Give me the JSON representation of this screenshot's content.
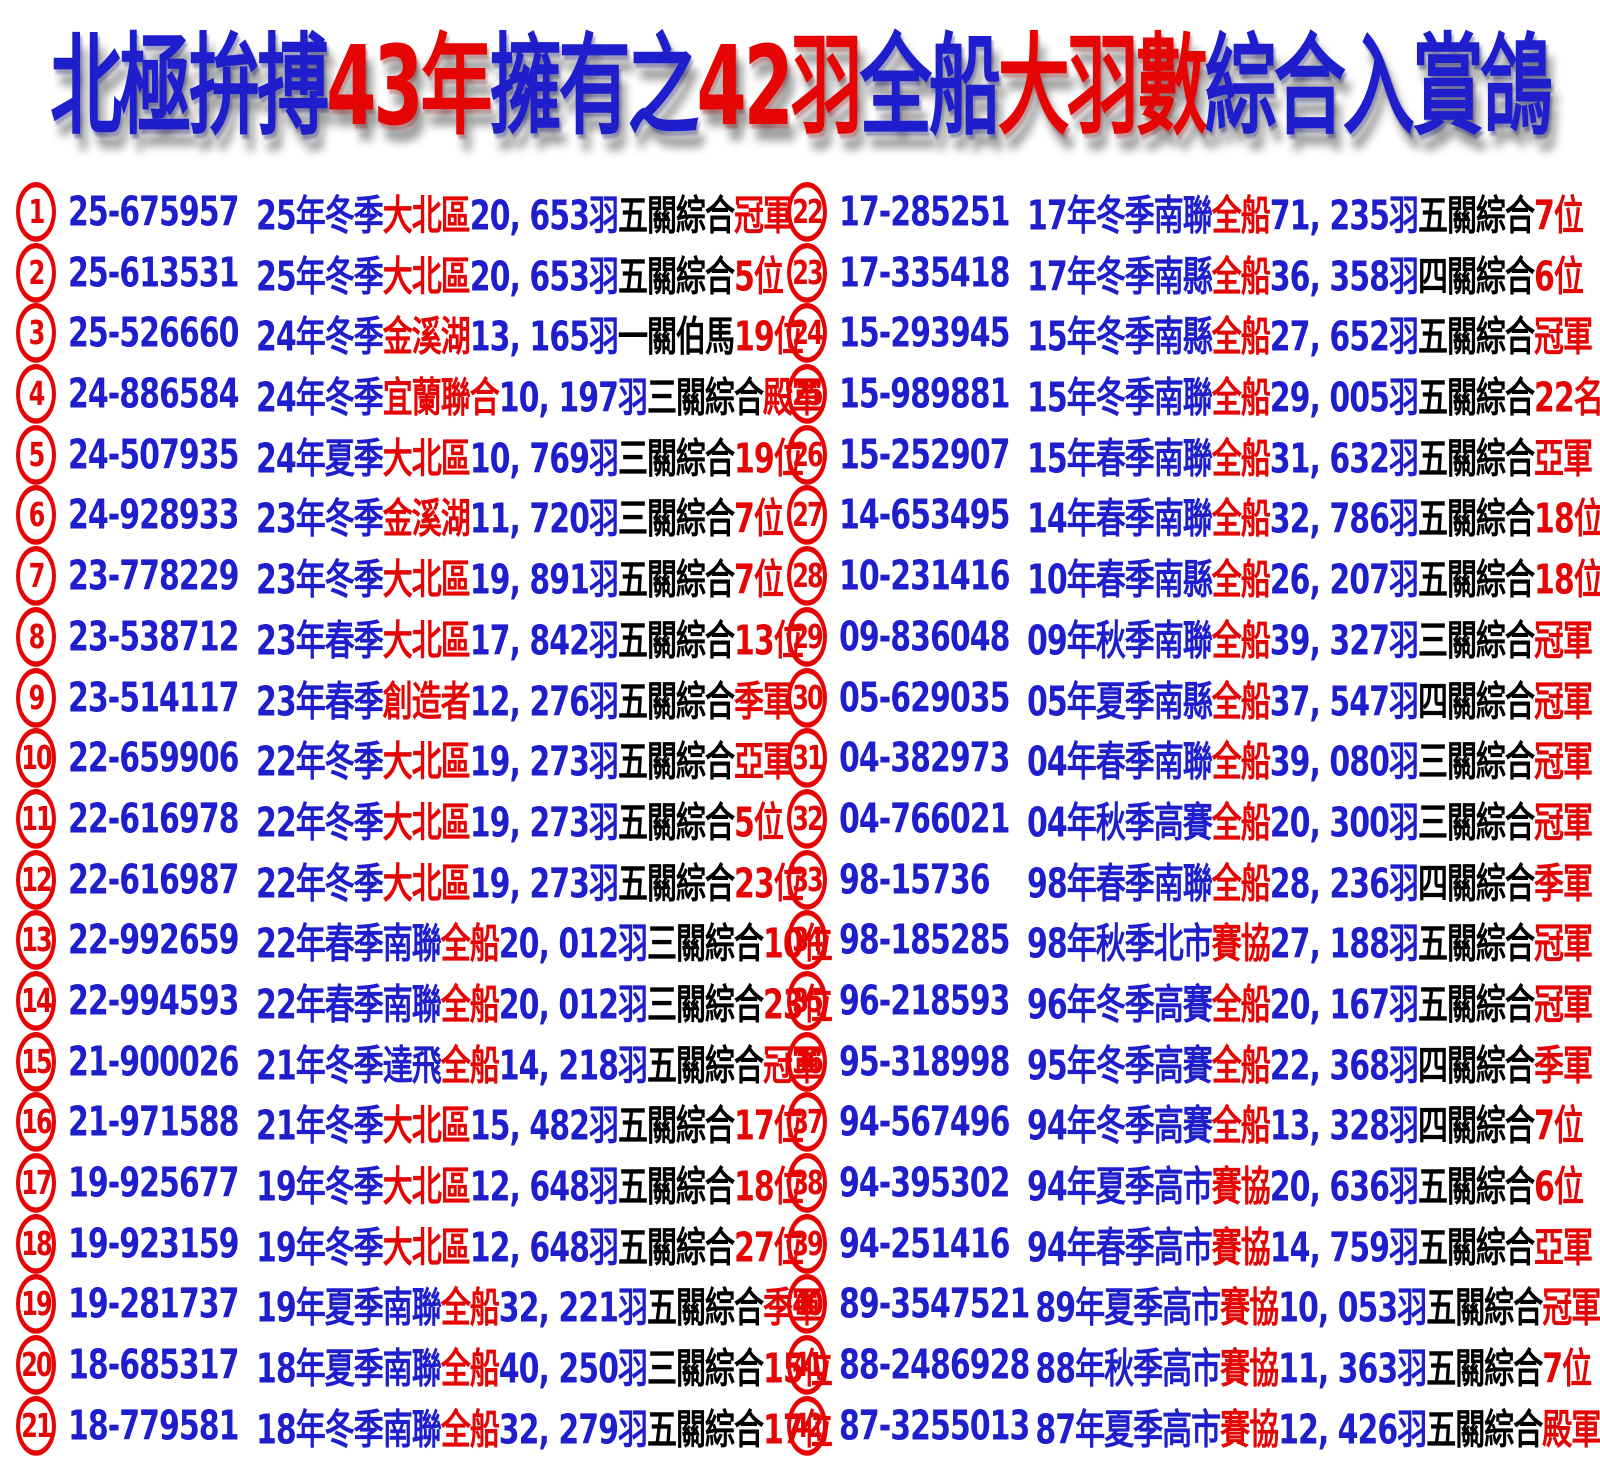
{
  "colors": {
    "blue": "#1e1ecc",
    "red": "#e50505",
    "black": "#000000"
  },
  "title": {
    "segments": [
      {
        "text": "北極拚搏",
        "color": "blue"
      },
      {
        "text": "43年",
        "color": "red"
      },
      {
        "text": "擁有之",
        "color": "blue"
      },
      {
        "text": "42羽",
        "color": "red"
      },
      {
        "text": "全船",
        "color": "blue"
      },
      {
        "text": "大羽數",
        "color": "red"
      },
      {
        "text": "綜合入賞鴿",
        "color": "blue"
      }
    ]
  },
  "rows": [
    {
      "num": "1",
      "ring": "25-675957",
      "pre": "25年冬季",
      "club": "大北區",
      "count": "20, 653羽",
      "stage": "五關綜合",
      "place": "冠軍"
    },
    {
      "num": "2",
      "ring": "25-613531",
      "pre": "25年冬季",
      "club": "大北區",
      "count": "20, 653羽",
      "stage": "五關綜合",
      "place": "5位"
    },
    {
      "num": "3",
      "ring": "25-526660",
      "pre": "24年冬季",
      "club": "金溪湖",
      "count": "13, 165羽",
      "stage": "一關伯馬",
      "place": "19位"
    },
    {
      "num": "4",
      "ring": "24-886584",
      "pre": "24年冬季",
      "club": "宜蘭聯合",
      "count": "10, 197羽",
      "stage": "三關綜合",
      "place": "殿軍"
    },
    {
      "num": "5",
      "ring": "24-507935",
      "pre": "24年夏季",
      "club": "大北區",
      "count": "10, 769羽",
      "stage": "三關綜合",
      "place": "19位"
    },
    {
      "num": "6",
      "ring": "24-928933",
      "pre": "23年冬季",
      "club": "金溪湖",
      "count": "11, 720羽",
      "stage": "三關綜合",
      "place": "7位"
    },
    {
      "num": "7",
      "ring": "23-778229",
      "pre": "23年冬季",
      "club": "大北區",
      "count": "19, 891羽",
      "stage": "五關綜合",
      "place": "7位"
    },
    {
      "num": "8",
      "ring": "23-538712",
      "pre": "23年春季",
      "club": "大北區",
      "count": "17, 842羽",
      "stage": "五關綜合",
      "place": "13位"
    },
    {
      "num": "9",
      "ring": "23-514117",
      "pre": "23年春季",
      "club": "創造者",
      "count": "12, 276羽",
      "stage": "五關綜合",
      "place": "季軍"
    },
    {
      "num": "10",
      "ring": "22-659906",
      "pre": "22年冬季",
      "club": "大北區",
      "count": "19, 273羽",
      "stage": "五關綜合",
      "place": "亞軍"
    },
    {
      "num": "11",
      "ring": "22-616978",
      "pre": "22年冬季",
      "club": "大北區",
      "count": "19, 273羽",
      "stage": "五關綜合",
      "place": "5位"
    },
    {
      "num": "12",
      "ring": "22-616987",
      "pre": "22年冬季",
      "club": "大北區",
      "count": "19, 273羽",
      "stage": "五關綜合",
      "place": "23位"
    },
    {
      "num": "13",
      "ring": "22-992659",
      "pre": "22年春季南聯",
      "club": "全船",
      "count": "20, 012羽",
      "stage": "三關綜合",
      "place": "10位"
    },
    {
      "num": "14",
      "ring": "22-994593",
      "pre": "22年春季南聯",
      "club": "全船",
      "count": "20, 012羽",
      "stage": "三關綜合",
      "place": "23位"
    },
    {
      "num": "15",
      "ring": "21-900026",
      "pre": "21年冬季達飛",
      "club": "全船",
      "count": "14, 218羽",
      "stage": "五關綜合",
      "place": "冠軍"
    },
    {
      "num": "16",
      "ring": "21-971588",
      "pre": "21年冬季",
      "club": "大北區",
      "count": "15, 482羽",
      "stage": "五關綜合",
      "place": "17位"
    },
    {
      "num": "17",
      "ring": "19-925677",
      "pre": "19年冬季",
      "club": "大北區",
      "count": "12, 648羽",
      "stage": "五關綜合",
      "place": "18位"
    },
    {
      "num": "18",
      "ring": "19-923159",
      "pre": "19年冬季",
      "club": "大北區",
      "count": "12, 648羽",
      "stage": "五關綜合",
      "place": "27位"
    },
    {
      "num": "19",
      "ring": "19-281737",
      "pre": "19年夏季南聯",
      "club": "全船",
      "count": "32, 221羽",
      "stage": "五關綜合",
      "place": "季軍"
    },
    {
      "num": "20",
      "ring": "18-685317",
      "pre": "18年夏季南聯",
      "club": "全船",
      "count": "40, 250羽",
      "stage": "三關綜合",
      "place": "15位"
    },
    {
      "num": "21",
      "ring": "18-779581",
      "pre": "18年冬季南聯",
      "club": "全船",
      "count": "32, 279羽",
      "stage": "五關綜合",
      "place": "17位"
    },
    {
      "num": "22",
      "ring": "17-285251",
      "pre": "17年冬季南聯",
      "club": "全船",
      "count": "71, 235羽",
      "stage": "五關綜合",
      "place": "7位"
    },
    {
      "num": "23",
      "ring": "17-335418",
      "pre": "17年冬季南縣",
      "club": "全船",
      "count": "36, 358羽",
      "stage": "四關綜合",
      "place": "6位"
    },
    {
      "num": "24",
      "ring": "15-293945",
      "pre": "15年冬季南縣",
      "club": "全船",
      "count": "27, 652羽",
      "stage": "五關綜合",
      "place": "冠軍"
    },
    {
      "num": "25",
      "ring": "15-989881",
      "pre": "15年冬季南聯",
      "club": "全船",
      "count": "29, 005羽",
      "stage": "五關綜合",
      "place": "22名"
    },
    {
      "num": "26",
      "ring": "15-252907",
      "pre": "15年春季南聯",
      "club": "全船",
      "count": "31, 632羽",
      "stage": "五關綜合",
      "place": "亞軍"
    },
    {
      "num": "27",
      "ring": "14-653495",
      "pre": "14年春季南聯",
      "club": "全船",
      "count": "32, 786羽",
      "stage": "五關綜合",
      "place": "18位"
    },
    {
      "num": "28",
      "ring": "10-231416",
      "pre": "10年春季南縣",
      "club": "全船",
      "count": "26, 207羽",
      "stage": "五關綜合",
      "place": "18位"
    },
    {
      "num": "29",
      "ring": "09-836048",
      "pre": "09年秋季南聯",
      "club": "全船",
      "count": "39, 327羽",
      "stage": "三關綜合",
      "place": "冠軍"
    },
    {
      "num": "30",
      "ring": "05-629035",
      "pre": "05年夏季南縣",
      "club": "全船",
      "count": "37, 547羽",
      "stage": "四關綜合",
      "place": "冠軍"
    },
    {
      "num": "31",
      "ring": "04-382973",
      "pre": "04年春季南聯",
      "club": "全船",
      "count": "39, 080羽",
      "stage": "三關綜合",
      "place": "冠軍"
    },
    {
      "num": "32",
      "ring": "04-766021",
      "pre": "04年秋季高賽",
      "club": "全船",
      "count": "20, 300羽",
      "stage": "三關綜合",
      "place": "冠軍"
    },
    {
      "num": "33",
      "ring": "98-15736",
      "pre": "98年春季南聯",
      "club": "全船",
      "count": "28, 236羽",
      "stage": "四關綜合",
      "place": "季軍"
    },
    {
      "num": "34",
      "ring": "98-185285",
      "pre": "98年秋季北市",
      "club": "賽協",
      "count": "27, 188羽",
      "stage": "五關綜合",
      "place": "冠軍"
    },
    {
      "num": "35",
      "ring": "96-218593",
      "pre": "96年冬季高賽",
      "club": "全船",
      "count": "20, 167羽",
      "stage": "五關綜合",
      "place": "冠軍"
    },
    {
      "num": "36",
      "ring": "95-318998",
      "pre": "95年冬季高賽",
      "club": "全船",
      "count": "22, 368羽",
      "stage": "四關綜合",
      "place": "季軍"
    },
    {
      "num": "37",
      "ring": "94-567496",
      "pre": "94年冬季高賽",
      "club": "全船",
      "count": "13, 328羽",
      "stage": "四關綜合",
      "place": "7位"
    },
    {
      "num": "38",
      "ring": "94-395302",
      "pre": "94年夏季高市",
      "club": "賽協",
      "count": "20, 636羽",
      "stage": "五關綜合",
      "place": "6位"
    },
    {
      "num": "39",
      "ring": "94-251416",
      "pre": "94年春季高市",
      "club": "賽協",
      "count": "14, 759羽",
      "stage": "五關綜合",
      "place": "亞軍"
    },
    {
      "num": "40",
      "ring": "89-3547521",
      "pre": "89年夏季高市",
      "club": "賽協",
      "count": "10, 053羽",
      "stage": "五關綜合",
      "place": "冠軍"
    },
    {
      "num": "41",
      "ring": "88-2486928",
      "pre": "88年秋季高市",
      "club": "賽協",
      "count": "11, 363羽",
      "stage": "五關綜合",
      "place": "7位"
    },
    {
      "num": "42",
      "ring": "87-3255013",
      "pre": "87年夏季高市",
      "club": "賽協",
      "count": "12, 426羽",
      "stage": "五關綜合",
      "place": "殿軍"
    }
  ]
}
